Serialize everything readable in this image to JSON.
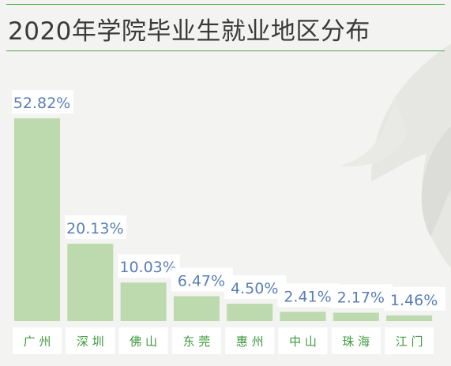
{
  "title": "2020年学院毕业生就业地区分布",
  "colors": {
    "bar": "#bcdaae",
    "label": "#5a7fb5",
    "category": "#3e9a3e",
    "rule": "#4aa84a"
  },
  "chart_data": {
    "type": "bar",
    "title": "2020年学院毕业生就业地区分布",
    "categories": [
      "广州",
      "深圳",
      "佛山",
      "东莞",
      "惠州",
      "中山",
      "珠海",
      "江门"
    ],
    "category_labels": [
      "广 州",
      "深 圳",
      "佛 山",
      "东 莞",
      "惠 州",
      "中 山",
      "珠 海",
      "江 门"
    ],
    "values": [
      52.82,
      20.13,
      10.03,
      6.47,
      4.5,
      2.41,
      2.17,
      1.46
    ],
    "value_labels": [
      "52.82%",
      "20.13%",
      "10.03%",
      "6.47%",
      "4.50%",
      "2.41%",
      "2.17%",
      "1.46%"
    ],
    "unit": "%",
    "ylim": [
      0,
      52.82
    ],
    "grid": false,
    "xlabel": "",
    "ylabel": ""
  }
}
